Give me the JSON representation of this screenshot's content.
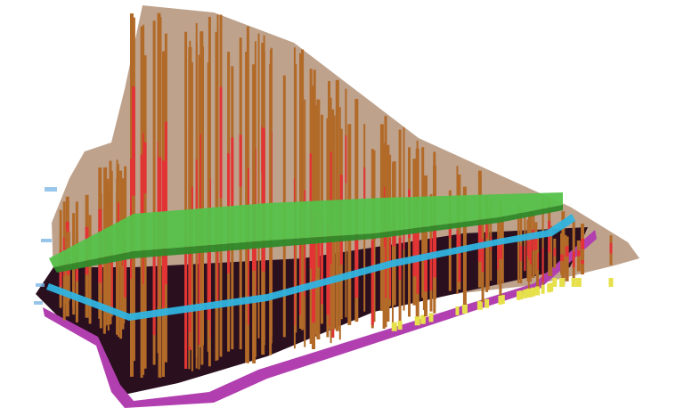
{
  "scene": {
    "surfaces": [
      {
        "id": "terrain",
        "color": "#b99a82"
      },
      {
        "id": "green-horizon",
        "color": "#55c24a"
      },
      {
        "id": "cyan-horizon",
        "color": "#2fb4e0"
      },
      {
        "id": "magenta-horizon",
        "color": "#b23fb0"
      }
    ],
    "base_color": "#2a0f1f",
    "well_colors": {
      "casing": "#b26a28",
      "interval": "#e23434",
      "marker": "#e6e04a"
    }
  }
}
